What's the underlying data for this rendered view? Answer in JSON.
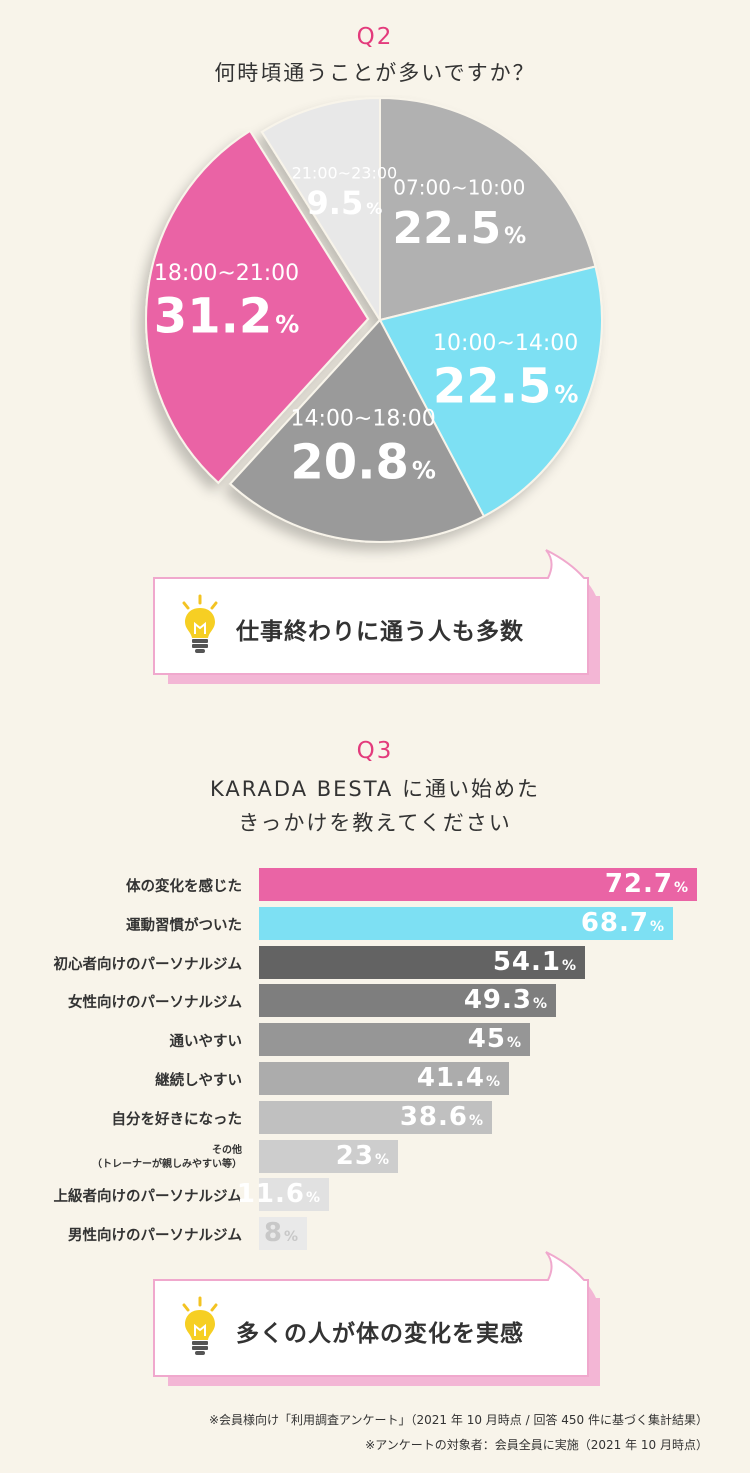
{
  "q2": {
    "num": "Q2",
    "title": "何時頃通うことが多いですか？"
  },
  "chart_data": [
    {
      "type": "pie",
      "title": "何時頃通うことが多いですか？",
      "categories": [
        "07:00~10:00",
        "10:00~14:00",
        "14:00~18:00",
        "18:00~21:00",
        "21:00~23:00"
      ],
      "values": [
        22.5,
        22.5,
        20.8,
        31.2,
        9.5
      ],
      "value_labels": [
        "22.5",
        "22.5",
        "20.8",
        "31.2",
        "9.5"
      ],
      "unit": "%",
      "colors": [
        "#b1b1b1",
        "#7de0f3",
        "#9a9a9a",
        "#ea64a5",
        "#e8e8e8"
      ],
      "exploded": [
        false,
        false,
        false,
        true,
        false
      ]
    },
    {
      "type": "bar",
      "orientation": "horizontal",
      "title": "KARADA BESTA に通い始めたきっかけを教えてください",
      "categories": [
        "体の変化を感じた",
        "運動習慣がついた",
        "初心者向けのパーソナルジム",
        "女性向けのパーソナルジム",
        "通いやすい",
        "継続しやすい",
        "自分を好きになった",
        "その他（トレーナーが親しみやすい等）",
        "上級者向けのパーソナルジム",
        "男性向けのパーソナルジム"
      ],
      "values": [
        72.7,
        68.7,
        54.1,
        49.3,
        45,
        41.4,
        38.6,
        23,
        11.6,
        8
      ],
      "unit": "%",
      "colors": [
        "#ea64a5",
        "#7de0f3",
        "#636363",
        "#7e7e7e",
        "#969696",
        "#acacac",
        "#c0c0c0",
        "#cdcdcd",
        "#e1e1e1",
        "#e9e9e9"
      ]
    }
  ],
  "q2_tip": "仕事終わりに通う人も多数",
  "q3": {
    "num": "Q3",
    "title_line1": "KARADA BESTA に通い始めた",
    "title_line2": "きっかけを教えてください"
  },
  "q3_labels": {
    "other_line1": "その他",
    "other_line2": "（トレーナーが親しみやすい等）"
  },
  "bar_values_text": [
    "72.7",
    "68.7",
    "54.1",
    "49.3",
    "45",
    "41.4",
    "38.6",
    "23",
    "11.6",
    "8"
  ],
  "q3_tip": "多くの人が体の変化を実感",
  "footnotes": {
    "line1": "※会員様向け「利用調査アンケート」（2021 年 10 月時点 / 回答 450 件に基づく集計結果）",
    "line2": "※アンケートの対象者：会員全員に実施（2021 年 10 月時点）"
  }
}
